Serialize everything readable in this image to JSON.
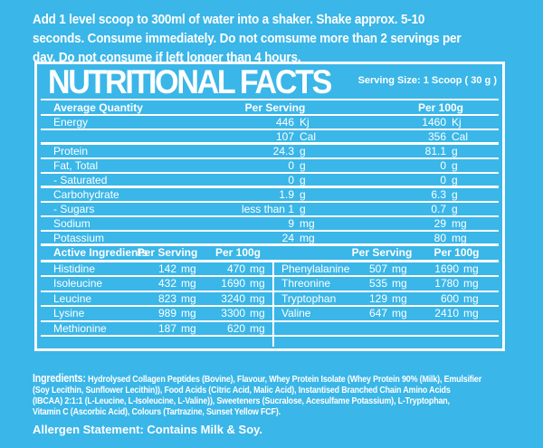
{
  "colors": {
    "background": "#3ab6e8",
    "text": "#ffffff"
  },
  "instructions": {
    "lines": [
      "Add 1 level scoop to 300ml of water into a shaker. Shake approx. 5-10",
      "seconds. Consume immediately. Do not comsume more than 2 servings per",
      "day. Do not consume if left longer than 4 hours."
    ]
  },
  "panel": {
    "title": "NUTRITIONAL FACTS",
    "serving_size": "Serving Size: 1 Scoop ( 30 g )",
    "table": {
      "headers": [
        "Average Quantity",
        "Per Serving",
        "Per 100g"
      ],
      "rows": [
        {
          "label": "Energy",
          "serving": "446",
          "serving_unit": "Kj",
          "per100": "1460",
          "per100_unit": "Kj"
        },
        {
          "label": "",
          "serving": "107",
          "serving_unit": "Cal",
          "per100": "356",
          "per100_unit": "Cal"
        },
        {
          "label": "Protein",
          "serving": "24.3",
          "serving_unit": "g",
          "per100": "81.1",
          "per100_unit": "g"
        },
        {
          "label": "Fat, Total",
          "serving": "0",
          "serving_unit": "g",
          "per100": "0",
          "per100_unit": "g"
        },
        {
          "label": "- Saturated",
          "serving": "0",
          "serving_unit": "g",
          "per100": "0",
          "per100_unit": "g"
        },
        {
          "label": "Carbohydrate",
          "serving": "1.9",
          "serving_unit": "g",
          "per100": "6.3",
          "per100_unit": "g"
        },
        {
          "label": "- Sugars",
          "serving": "less than 1",
          "serving_unit": "g",
          "per100": "0.7",
          "per100_unit": "g"
        },
        {
          "label": "Sodium",
          "serving": "9",
          "serving_unit": "mg",
          "per100": "29",
          "per100_unit": "mg"
        },
        {
          "label": "Potassium",
          "serving": "24",
          "serving_unit": "mg",
          "per100": "80",
          "per100_unit": "mg"
        }
      ]
    },
    "active": {
      "header_label": "Active Ingredients",
      "col_headers": [
        "Per Serving",
        "Per 100g",
        "Per Serving",
        "Per 100g"
      ],
      "rows": [
        {
          "l_name": "Histidine",
          "l_serving": "142",
          "l_per100": "470",
          "l_unit": "mg",
          "r_name": "Phenylalanine",
          "r_serving": "507",
          "r_per100": "1690",
          "r_unit": "mg"
        },
        {
          "l_name": "Isoleucine",
          "l_serving": "432",
          "l_per100": "1690",
          "l_unit": "mg",
          "r_name": "Threonine",
          "r_serving": "535",
          "r_per100": "1780",
          "r_unit": "mg"
        },
        {
          "l_name": "Leucine",
          "l_serving": "823",
          "l_per100": "3240",
          "l_unit": "mg",
          "r_name": "Tryptophan",
          "r_serving": "129",
          "r_per100": "600",
          "r_unit": "mg"
        },
        {
          "l_name": "Lysine",
          "l_serving": "989",
          "l_per100": "3300",
          "l_unit": "mg",
          "r_name": "Valine",
          "r_serving": "647",
          "r_per100": "2410",
          "r_unit": "mg"
        },
        {
          "l_name": "Methionine",
          "l_serving": "187",
          "l_per100": "620",
          "l_unit": "mg",
          "r_name": "",
          "r_serving": "",
          "r_per100": "",
          "r_unit": ""
        }
      ]
    }
  },
  "ingredients": {
    "label": "Ingredients:",
    "line1": " Hydrolysed Collagen Peptides (Bovine), Flavour, Whey Protein Isolate (Whey Protein 90% (Milk), Emulsifier",
    "line2": "(Soy Lecithin, Sunflower Lecithin)), Food Acids (Citric Acid, Malic Acid), Instantised Branched Chain Amino Acids",
    "line3": "(IBCAA) 2:1:1 (L-Leucine, L-Isoleucine, L-Valine)), Sweeteners (Sucralose, Acesulfame Potassium), L-Tryptophan,",
    "line4": "Vitamin C (Ascorbic Acid), Colours (Tartrazine, Sunset Yellow FCF)."
  },
  "allergen": {
    "text": "Allergen Statement: Contains Milk & Soy."
  }
}
